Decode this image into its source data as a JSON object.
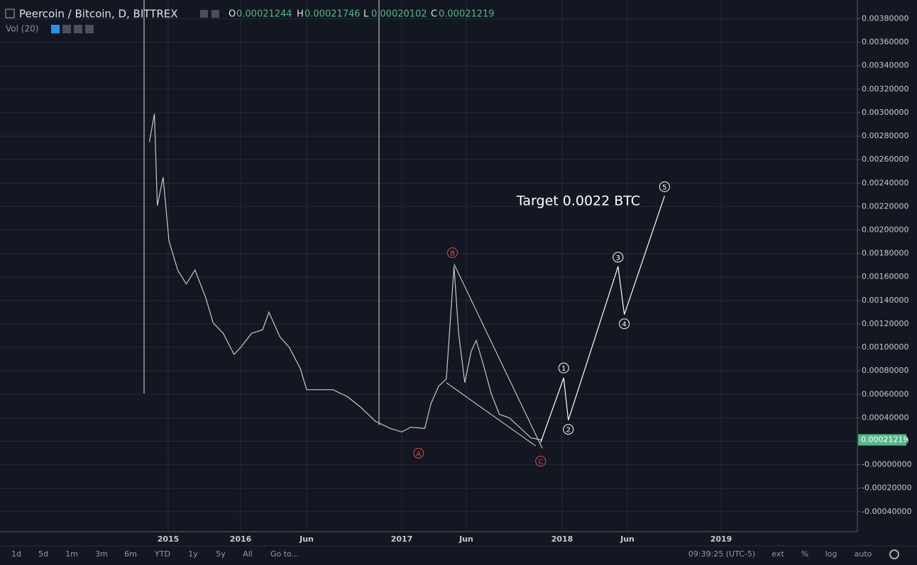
{
  "header": {
    "title": "Peercoin / Bitcoin, D, BITTREX",
    "ohlc": [
      {
        "key": "O",
        "value": "0.00021244"
      },
      {
        "key": "H",
        "value": "0.00021746"
      },
      {
        "key": "L",
        "value": "0.00020102"
      },
      {
        "key": "C",
        "value": "0.00021219"
      }
    ],
    "volume": "Vol (20)"
  },
  "toolbar": {
    "ranges": [
      "1d",
      "5d",
      "1m",
      "3m",
      "6m",
      "YTD",
      "1y",
      "5y",
      "All",
      "Go to..."
    ],
    "time": "09:39:25 (UTC-5)",
    "options": [
      "ext",
      "%",
      "log",
      "auto"
    ]
  },
  "chart_data": {
    "type": "line",
    "color": "#c8c8c8",
    "x": [
      2014.74,
      2014.81,
      2014.85,
      2014.93,
      2015.01,
      2015.13,
      2015.25,
      2015.37,
      2015.52,
      2015.62,
      2015.76,
      2015.91,
      2016.0,
      2016.07,
      2016.14,
      2016.18,
      2016.25,
      2016.31,
      2016.38,
      2016.42,
      2016.49,
      2016.58,
      2016.67,
      2016.75,
      2016.84,
      2016.93,
      2017.0,
      2017.06,
      2017.15,
      2017.19,
      2017.24,
      2017.29,
      2017.34,
      2017.37,
      2017.41,
      2017.45,
      2017.48,
      2017.53,
      2017.57,
      2017.62,
      2017.68,
      2017.75,
      2017.81,
      2017.88
    ],
    "values": [
      0.00275,
      0.00299,
      0.00221,
      0.00245,
      0.00191,
      0.00166,
      0.00154,
      0.00166,
      0.00142,
      0.00121,
      0.00112,
      0.00094,
      0.001,
      0.00112,
      0.00115,
      0.0013,
      0.00109,
      0.001,
      0.00082,
      0.00064,
      0.00064,
      0.00064,
      0.00058,
      0.00049,
      0.00037,
      0.00031,
      0.00028,
      0.00032,
      0.00031,
      0.00052,
      0.00067,
      0.00073,
      0.00169,
      0.00112,
      0.0007,
      0.00097,
      0.00106,
      0.00082,
      0.00061,
      0.00043,
      0.0004,
      0.00031,
      0.00023,
      0.00021
    ],
    "last_price": 0.00021219,
    "xlim": [
      2012.68,
      2019.85
    ],
    "ylim": [
      -0.00057,
      0.00396
    ],
    "xticks": [
      {
        "value": 2015,
        "label": "2015"
      },
      {
        "value": 2016,
        "label": "2016"
      },
      {
        "value": 2016.42,
        "label": "Jun"
      },
      {
        "value": 2017,
        "label": "2017"
      },
      {
        "value": 2017.42,
        "label": "Jun"
      },
      {
        "value": 2018,
        "label": "2018"
      },
      {
        "value": 2018.42,
        "label": "Jun"
      },
      {
        "value": 2019,
        "label": "2019"
      }
    ],
    "yticks": [
      {
        "value": 0.0038,
        "label": "0.00380000"
      },
      {
        "value": 0.0036,
        "label": "0.00360000"
      },
      {
        "value": 0.0034,
        "label": "0.00340000"
      },
      {
        "value": 0.0032,
        "label": "0.00320000"
      },
      {
        "value": 0.003,
        "label": "0.00300000"
      },
      {
        "value": 0.0028,
        "label": "0.00280000"
      },
      {
        "value": 0.0026,
        "label": "0.00260000"
      },
      {
        "value": 0.0024,
        "label": "0.00240000"
      },
      {
        "value": 0.0022,
        "label": "0.00220000"
      },
      {
        "value": 0.002,
        "label": "0.00200000"
      },
      {
        "value": 0.0018,
        "label": "0.00180000"
      },
      {
        "value": 0.0016,
        "label": "0.00160000"
      },
      {
        "value": 0.0014,
        "label": "0.00140000"
      },
      {
        "value": 0.0012,
        "label": "0.00120000"
      },
      {
        "value": 0.001,
        "label": "0.00100000"
      },
      {
        "value": 0.0008,
        "label": "0.00080000"
      },
      {
        "value": 0.0006,
        "label": "0.00060000"
      },
      {
        "value": 0.0004,
        "label": "0.00040000"
      },
      {
        "value": 0.0002,
        "label": "0.00020000"
      },
      {
        "value": 0,
        "label": "-0.00000000"
      },
      {
        "value": -0.0002,
        "label": "-0.00020000"
      },
      {
        "value": -0.0004,
        "label": "-0.00040000"
      }
    ],
    "grid": true,
    "target": "Target 0.0022 BTC",
    "wave": {
      "labels": [
        "1",
        "2",
        "3",
        "4",
        "5"
      ],
      "x": [
        2017.87,
        2018.01,
        2018.04,
        2018.36,
        2018.4,
        2018.65
      ],
      "values": [
        0.00019,
        0.00074,
        0.00038,
        0.00169,
        0.00128,
        0.00229
      ]
    },
    "correction": {
      "labels": [
        "A",
        "B",
        "C"
      ],
      "x": [
        2017.11,
        2017.33,
        2017.87
      ],
      "values": [
        0.00028,
        0.00171,
        0.00014
      ]
    },
    "wedge": [
      {
        "x": [
          2017.34,
          2017.88
        ],
        "values": [
          0.00171,
          0.00014
        ]
      },
      {
        "x": [
          2017.29,
          2017.84
        ],
        "values": [
          0.0007,
          0.00016
        ]
      }
    ]
  }
}
